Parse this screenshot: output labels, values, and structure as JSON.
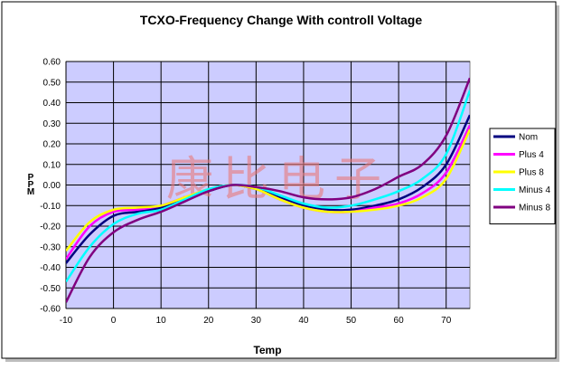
{
  "chart_data": {
    "type": "line",
    "title": "TCXO-Frequency Change With controll Voltage",
    "xlabel": "Temp",
    "ylabel": "PPM",
    "xlim": [
      -10,
      75
    ],
    "ylim": [
      -0.6,
      0.6
    ],
    "x_ticks": [
      -10,
      0,
      10,
      20,
      30,
      40,
      50,
      60,
      70
    ],
    "y_ticks": [
      -0.6,
      -0.5,
      -0.4,
      -0.3,
      -0.2,
      -0.1,
      0.0,
      0.1,
      0.2,
      0.3,
      0.4,
      0.5,
      0.6
    ],
    "y_tick_labels": [
      "-0.60",
      "-0.50",
      "-0.40",
      "-0.30",
      "-0.20",
      "-0.10",
      "0.00",
      "0.10",
      "0.20",
      "0.30",
      "0.40",
      "0.50",
      "0.60"
    ],
    "x_tick_labels": [
      "-10",
      "0",
      "10",
      "20",
      "30",
      "40",
      "50",
      "60",
      "70"
    ],
    "grid": true,
    "legend_position": "right",
    "plot_background": "#ccccff",
    "watermark": "康比电子",
    "series": [
      {
        "name": "Nom",
        "color": "#000080",
        "points": [
          [
            -10,
            -0.38
          ],
          [
            -5,
            -0.24
          ],
          [
            0,
            -0.15
          ],
          [
            5,
            -0.13
          ],
          [
            10,
            -0.11
          ],
          [
            15,
            -0.07
          ],
          [
            20,
            -0.03
          ],
          [
            25,
            0.0
          ],
          [
            30,
            -0.02
          ],
          [
            35,
            -0.06
          ],
          [
            40,
            -0.1
          ],
          [
            45,
            -0.12
          ],
          [
            50,
            -0.12
          ],
          [
            55,
            -0.1
          ],
          [
            60,
            -0.07
          ],
          [
            65,
            -0.01
          ],
          [
            70,
            0.1
          ],
          [
            75,
            0.34
          ]
        ]
      },
      {
        "name": "Plus 4",
        "color": "#ff00ff",
        "points": [
          [
            -10,
            -0.36
          ],
          [
            -5,
            -0.2
          ],
          [
            0,
            -0.13
          ],
          [
            5,
            -0.12
          ],
          [
            10,
            -0.1
          ],
          [
            15,
            -0.06
          ],
          [
            20,
            -0.02
          ],
          [
            25,
            0.0
          ],
          [
            30,
            -0.02
          ],
          [
            35,
            -0.07
          ],
          [
            40,
            -0.11
          ],
          [
            45,
            -0.13
          ],
          [
            50,
            -0.13
          ],
          [
            55,
            -0.11
          ],
          [
            60,
            -0.09
          ],
          [
            65,
            -0.04
          ],
          [
            70,
            0.06
          ],
          [
            75,
            0.29
          ]
        ]
      },
      {
        "name": "Plus 8",
        "color": "#ffff00",
        "points": [
          [
            -10,
            -0.32
          ],
          [
            -5,
            -0.18
          ],
          [
            0,
            -0.12
          ],
          [
            5,
            -0.11
          ],
          [
            10,
            -0.1
          ],
          [
            15,
            -0.06
          ],
          [
            20,
            -0.02
          ],
          [
            25,
            0.0
          ],
          [
            30,
            -0.02
          ],
          [
            35,
            -0.07
          ],
          [
            40,
            -0.11
          ],
          [
            45,
            -0.13
          ],
          [
            50,
            -0.13
          ],
          [
            55,
            -0.12
          ],
          [
            60,
            -0.1
          ],
          [
            65,
            -0.06
          ],
          [
            70,
            0.03
          ],
          [
            75,
            0.27
          ]
        ]
      },
      {
        "name": "Minus 4",
        "color": "#00ffff",
        "points": [
          [
            -10,
            -0.47
          ],
          [
            -5,
            -0.3
          ],
          [
            0,
            -0.19
          ],
          [
            5,
            -0.14
          ],
          [
            10,
            -0.12
          ],
          [
            15,
            -0.07
          ],
          [
            20,
            -0.02
          ],
          [
            25,
            0.0
          ],
          [
            30,
            -0.01
          ],
          [
            35,
            -0.05
          ],
          [
            40,
            -0.09
          ],
          [
            45,
            -0.11
          ],
          [
            50,
            -0.1
          ],
          [
            55,
            -0.07
          ],
          [
            60,
            -0.03
          ],
          [
            65,
            0.03
          ],
          [
            70,
            0.15
          ],
          [
            75,
            0.46
          ]
        ]
      },
      {
        "name": "Minus 8",
        "color": "#800080",
        "points": [
          [
            -10,
            -0.57
          ],
          [
            -5,
            -0.35
          ],
          [
            0,
            -0.23
          ],
          [
            5,
            -0.17
          ],
          [
            10,
            -0.13
          ],
          [
            15,
            -0.08
          ],
          [
            20,
            -0.03
          ],
          [
            25,
            0.0
          ],
          [
            30,
            -0.01
          ],
          [
            35,
            -0.03
          ],
          [
            40,
            -0.06
          ],
          [
            45,
            -0.07
          ],
          [
            50,
            -0.06
          ],
          [
            55,
            -0.02
          ],
          [
            60,
            0.04
          ],
          [
            65,
            0.1
          ],
          [
            70,
            0.24
          ],
          [
            75,
            0.52
          ]
        ]
      }
    ]
  }
}
